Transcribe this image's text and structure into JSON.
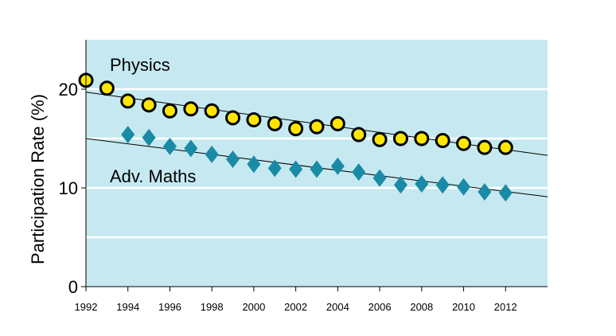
{
  "chart_data": {
    "type": "scatter",
    "title": "",
    "xlabel": "",
    "ylabel": "Participation Rate (%)",
    "xlim": [
      1992,
      2014
    ],
    "ylim": [
      0,
      25
    ],
    "x_ticks": [
      1992,
      1994,
      1996,
      1998,
      2000,
      2002,
      2004,
      2006,
      2008,
      2010,
      2012
    ],
    "y_ticks": [
      0,
      10,
      20
    ],
    "gridlines_y": [
      5,
      10,
      15,
      20
    ],
    "plot_background": "#c6e9f1",
    "series": [
      {
        "name": "Physics",
        "marker": "circle",
        "color": "#ffe600",
        "edge_color": "#000000",
        "x": [
          1992,
          1993,
          1994,
          1995,
          1996,
          1997,
          1998,
          1999,
          2000,
          2001,
          2002,
          2003,
          2004,
          2005,
          2006,
          2007,
          2008,
          2009,
          2010,
          2011,
          2012
        ],
        "y": [
          20.9,
          20.1,
          18.8,
          18.4,
          17.8,
          18.0,
          17.8,
          17.1,
          16.9,
          16.5,
          16.0,
          16.2,
          16.5,
          15.4,
          14.9,
          15.0,
          15.0,
          14.8,
          14.5,
          14.1,
          14.1
        ],
        "trendline": {
          "x": [
            1992,
            2014
          ],
          "y": [
            19.7,
            13.3
          ]
        }
      },
      {
        "name": "Adv. Maths",
        "marker": "diamond",
        "color": "#1a8ba6",
        "x": [
          1994,
          1995,
          1996,
          1997,
          1998,
          1999,
          2000,
          2001,
          2002,
          2003,
          2004,
          2005,
          2006,
          2007,
          2008,
          2009,
          2010,
          2011,
          2012
        ],
        "y": [
          15.4,
          15.1,
          14.2,
          14.0,
          13.4,
          12.9,
          12.4,
          12.0,
          11.9,
          11.9,
          12.2,
          11.6,
          11.0,
          10.3,
          10.4,
          10.3,
          10.1,
          9.6,
          9.5
        ],
        "trendline": {
          "x": [
            1992,
            2014
          ],
          "y": [
            15.0,
            9.1
          ]
        }
      }
    ],
    "annotations": [
      "Physics",
      "Adv. Maths"
    ]
  }
}
